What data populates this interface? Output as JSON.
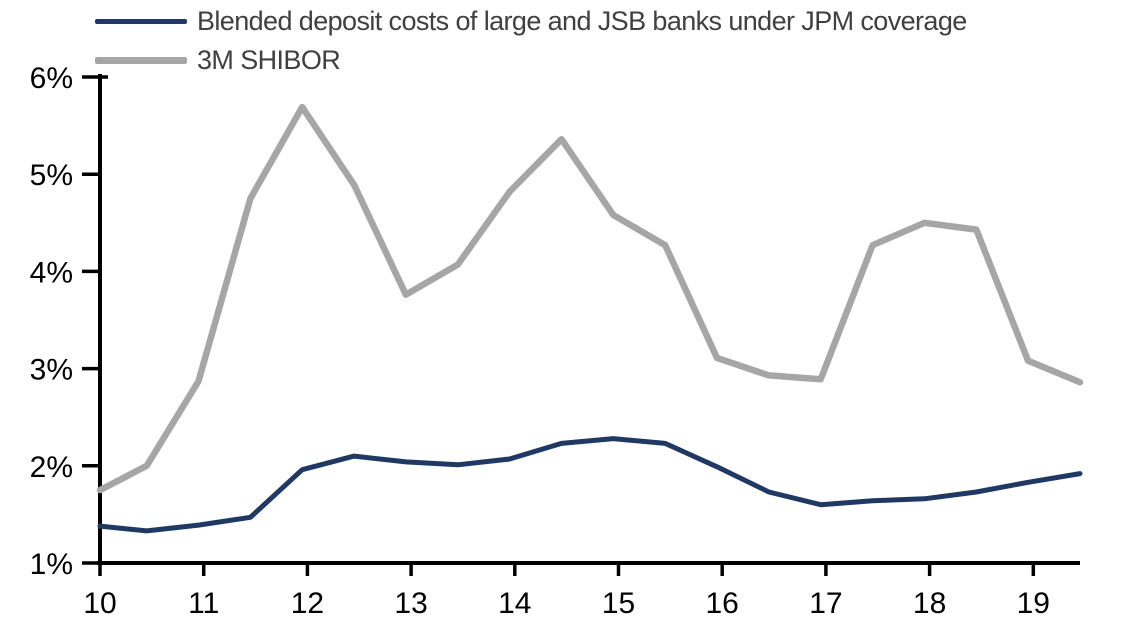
{
  "chart_data": {
    "type": "line",
    "title": "",
    "x_note": "years 2010-2019 shown as 10-19, semi-annual data points",
    "x": [
      10.0,
      10.45,
      10.95,
      11.45,
      11.95,
      12.45,
      12.95,
      13.45,
      13.95,
      14.45,
      14.95,
      15.45,
      15.95,
      16.45,
      16.95,
      17.45,
      17.95,
      18.45,
      18.95,
      19.45
    ],
    "series": [
      {
        "id": "deposit-costs",
        "name": "Blended deposit costs of large and JSB banks under JPM coverage",
        "color": "#1f3864",
        "stroke_width": 5,
        "values": [
          1.38,
          1.33,
          1.39,
          1.47,
          1.96,
          2.1,
          2.04,
          2.01,
          2.07,
          2.23,
          2.28,
          2.23,
          1.99,
          1.73,
          1.6,
          1.64,
          1.66,
          1.73,
          1.83,
          1.92
        ]
      },
      {
        "id": "shibor",
        "name": "3M SHIBOR",
        "color": "#a6a6a6",
        "stroke_width": 6.5,
        "values": [
          1.75,
          2.0,
          2.87,
          4.75,
          5.69,
          4.89,
          3.76,
          4.07,
          4.82,
          5.36,
          4.58,
          4.27,
          3.11,
          2.93,
          2.89,
          4.27,
          4.5,
          4.43,
          3.08,
          2.86
        ]
      }
    ],
    "xticks": {
      "values": [
        10,
        11,
        12,
        13,
        14,
        15,
        16,
        17,
        18,
        19
      ],
      "labels": [
        "10",
        "11",
        "12",
        "13",
        "14",
        "15",
        "16",
        "17",
        "18",
        "19"
      ]
    },
    "yticks": {
      "values": [
        1,
        2,
        3,
        4,
        5,
        6
      ],
      "labels": [
        "1%",
        "2%",
        "3%",
        "4%",
        "5%",
        "6%"
      ]
    },
    "xlim": [
      10,
      19.45
    ],
    "ylim": [
      1,
      6
    ],
    "grid": false,
    "legend_position": "top-left"
  },
  "colors": {
    "axis": "#000000",
    "tick_label": "#000000",
    "legend_text": "#404040",
    "background": "#ffffff"
  }
}
